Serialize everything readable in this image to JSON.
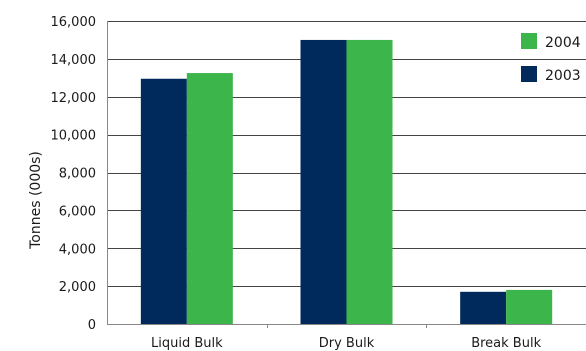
{
  "chart_data": {
    "type": "bar",
    "ylabel": "Tonnes (000s)",
    "xlabel": "",
    "categories": [
      "Liquid Bulk",
      "Dry Bulk",
      "Break Bulk"
    ],
    "series": [
      {
        "name": "2003",
        "values": [
          12950,
          15000,
          1700
        ],
        "color": "#002a5c"
      },
      {
        "name": "2004",
        "values": [
          13250,
          15000,
          1800
        ],
        "color": "#3cb54a"
      }
    ],
    "ylim": [
      0,
      16000
    ],
    "yticks": [
      0,
      2000,
      4000,
      6000,
      8000,
      10000,
      12000,
      14000,
      16000
    ],
    "ytick_labels": [
      "0",
      "2,000",
      "4,000",
      "6,000",
      "8,000",
      "10,000",
      "12,000",
      "14,000",
      "16,000"
    ],
    "grid": true,
    "legend": {
      "placement": "top-right",
      "order": [
        "2004",
        "2003"
      ]
    },
    "colors": {
      "grid": "#444444",
      "axis": "#888888"
    }
  }
}
